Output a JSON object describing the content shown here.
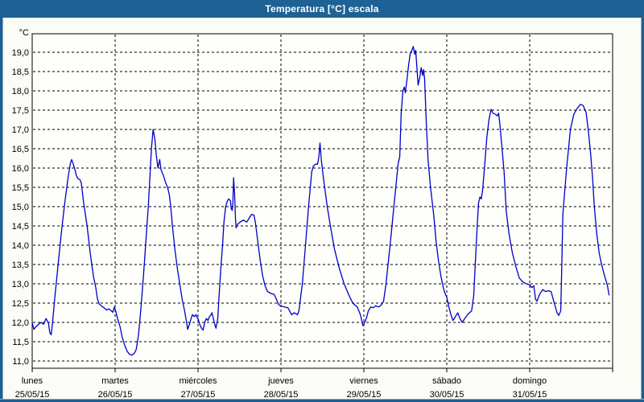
{
  "window": {
    "title": "Temperatura [°C] escala"
  },
  "colors": {
    "titlebar_bg": "#1E6295",
    "titlebar_text": "#FFFFFF",
    "window_border": "#1E5E92",
    "content_bg": "#FBFCF5",
    "plot_bg": "#FEFEFA",
    "line": "#0000C8",
    "grid": "#000000",
    "text": "#000000"
  },
  "chart_data": {
    "type": "line",
    "title": "Temperatura [°C] escala",
    "ylabel": "°C",
    "ylim": [
      10.8,
      19.5
    ],
    "grid": "dashed",
    "legend": "none",
    "y_ticks": [
      19.0,
      18.5,
      18.0,
      17.5,
      17.0,
      16.5,
      16.0,
      15.5,
      15.0,
      14.5,
      14.0,
      13.5,
      13.0,
      12.5,
      12.0,
      11.5,
      11.0
    ],
    "y_tick_labels": [
      "19,0",
      "18,5",
      "18,0",
      "17,5",
      "17,0",
      "16,5",
      "16,0",
      "15,5",
      "15,0",
      "14,5",
      "14,0",
      "13,5",
      "13,0",
      "12,5",
      "12,0",
      "11,5",
      "11,0"
    ],
    "categories": [
      {
        "name": "lunes",
        "date": "25/05/15"
      },
      {
        "name": "martes",
        "date": "26/05/15"
      },
      {
        "name": "miércoles",
        "date": "27/05/15"
      },
      {
        "name": "jueves",
        "date": "28/05/15"
      },
      {
        "name": "viernes",
        "date": "29/05/15"
      },
      {
        "name": "sábado",
        "date": "30/05/15"
      },
      {
        "name": "domingo",
        "date": "31/05/15"
      }
    ],
    "x_unit": "hours_from_start",
    "x_range_hours": [
      0,
      168
    ],
    "series": [
      {
        "name": "Temperatura [°C]",
        "color": "#0000C8",
        "points": [
          [
            0,
            12.0
          ],
          [
            0.5,
            11.82
          ],
          [
            1.2,
            11.9
          ],
          [
            1.8,
            11.95
          ],
          [
            2.6,
            12.0
          ],
          [
            3.3,
            11.95
          ],
          [
            4,
            12.1
          ],
          [
            4.7,
            11.98
          ],
          [
            5.1,
            11.73
          ],
          [
            5.5,
            11.68
          ],
          [
            5.9,
            12.0
          ],
          [
            6.5,
            12.6
          ],
          [
            7.5,
            13.5
          ],
          [
            8.4,
            14.3
          ],
          [
            9.3,
            15.0
          ],
          [
            10.3,
            15.7
          ],
          [
            11,
            16.1
          ],
          [
            11.4,
            16.22
          ],
          [
            11.9,
            16.1
          ],
          [
            12.4,
            15.95
          ],
          [
            12.8,
            15.8
          ],
          [
            13.3,
            15.72
          ],
          [
            13.8,
            15.7
          ],
          [
            14.2,
            15.62
          ],
          [
            14.9,
            15.1
          ],
          [
            15.9,
            14.5
          ],
          [
            16.8,
            13.8
          ],
          [
            17.7,
            13.2
          ],
          [
            18.4,
            12.9
          ],
          [
            18.9,
            12.6
          ],
          [
            19.4,
            12.48
          ],
          [
            20.1,
            12.42
          ],
          [
            20.8,
            12.38
          ],
          [
            21.5,
            12.32
          ],
          [
            22.2,
            12.35
          ],
          [
            22.9,
            12.3
          ],
          [
            23.3,
            12.26
          ],
          [
            23.8,
            12.4
          ],
          [
            24,
            12.35
          ],
          [
            24.7,
            12.1
          ],
          [
            25.4,
            11.9
          ],
          [
            26.1,
            11.6
          ],
          [
            26.8,
            11.4
          ],
          [
            27.5,
            11.25
          ],
          [
            28.2,
            11.17
          ],
          [
            28.9,
            11.15
          ],
          [
            29.6,
            11.2
          ],
          [
            30.1,
            11.3
          ],
          [
            30.8,
            11.7
          ],
          [
            31.5,
            12.4
          ],
          [
            32.2,
            13.2
          ],
          [
            32.9,
            14.1
          ],
          [
            33.6,
            15.0
          ],
          [
            34.1,
            15.8
          ],
          [
            34.5,
            16.5
          ],
          [
            35,
            17.0
          ],
          [
            35.5,
            16.75
          ],
          [
            35.9,
            16.35
          ],
          [
            36.4,
            16.0
          ],
          [
            36.9,
            16.22
          ],
          [
            37.3,
            15.95
          ],
          [
            38,
            15.8
          ],
          [
            38.7,
            15.6
          ],
          [
            39.2,
            15.5
          ],
          [
            39.7,
            15.3
          ],
          [
            40.1,
            15.0
          ],
          [
            40.6,
            14.5
          ],
          [
            41.3,
            13.9
          ],
          [
            42,
            13.4
          ],
          [
            42.7,
            13.0
          ],
          [
            43.4,
            12.6
          ],
          [
            44.1,
            12.3
          ],
          [
            44.6,
            12.05
          ],
          [
            45,
            11.82
          ],
          [
            45.5,
            11.95
          ],
          [
            46,
            12.1
          ],
          [
            46.4,
            12.2
          ],
          [
            46.9,
            12.15
          ],
          [
            47.4,
            12.2
          ],
          [
            47.8,
            12.12
          ],
          [
            48,
            12.1
          ],
          [
            48.5,
            11.95
          ],
          [
            49,
            11.85
          ],
          [
            49.5,
            11.8
          ],
          [
            49.9,
            12.0
          ],
          [
            50.4,
            12.1
          ],
          [
            50.9,
            12.05
          ],
          [
            51.3,
            12.15
          ],
          [
            51.8,
            12.2
          ],
          [
            52,
            12.25
          ],
          [
            52.3,
            12.15
          ],
          [
            52.7,
            12.0
          ],
          [
            53,
            11.9
          ],
          [
            53.2,
            11.85
          ],
          [
            53.7,
            12.1
          ],
          [
            54.1,
            12.7
          ],
          [
            54.6,
            13.4
          ],
          [
            55.1,
            14.0
          ],
          [
            55.5,
            14.6
          ],
          [
            56,
            15.0
          ],
          [
            56.5,
            15.15
          ],
          [
            56.9,
            15.2
          ],
          [
            57.4,
            15.15
          ],
          [
            57.6,
            14.95
          ],
          [
            57.9,
            14.9
          ],
          [
            58.1,
            15.1
          ],
          [
            58.3,
            15.75
          ],
          [
            58.6,
            15.3
          ],
          [
            58.8,
            14.75
          ],
          [
            59,
            14.45
          ],
          [
            59.5,
            14.55
          ],
          [
            60.2,
            14.6
          ],
          [
            61.1,
            14.65
          ],
          [
            62.1,
            14.6
          ],
          [
            62.8,
            14.7
          ],
          [
            63.5,
            14.8
          ],
          [
            64.2,
            14.78
          ],
          [
            64.6,
            14.6
          ],
          [
            65.3,
            14.1
          ],
          [
            66,
            13.6
          ],
          [
            66.7,
            13.2
          ],
          [
            67.4,
            12.95
          ],
          [
            68.1,
            12.8
          ],
          [
            69.1,
            12.75
          ],
          [
            70,
            12.73
          ],
          [
            70.7,
            12.6
          ],
          [
            71.2,
            12.48
          ],
          [
            71.6,
            12.44
          ],
          [
            72.1,
            12.42
          ],
          [
            73,
            12.4
          ],
          [
            74,
            12.38
          ],
          [
            75.1,
            12.2
          ],
          [
            75.8,
            12.25
          ],
          [
            76.8,
            12.2
          ],
          [
            77.2,
            12.3
          ],
          [
            78.2,
            13.0
          ],
          [
            79.1,
            14.0
          ],
          [
            80,
            15.0
          ],
          [
            80.9,
            15.9
          ],
          [
            81.4,
            16.05
          ],
          [
            82,
            16.1
          ],
          [
            82.6,
            16.1
          ],
          [
            83,
            16.3
          ],
          [
            83.3,
            16.65
          ],
          [
            83.7,
            16.2
          ],
          [
            84.2,
            15.8
          ],
          [
            85.4,
            15.0
          ],
          [
            86.3,
            14.5
          ],
          [
            87.5,
            13.9
          ],
          [
            88.9,
            13.4
          ],
          [
            90.3,
            13.0
          ],
          [
            91.7,
            12.7
          ],
          [
            92.8,
            12.5
          ],
          [
            93.4,
            12.45
          ],
          [
            94.1,
            12.4
          ],
          [
            95,
            12.2
          ],
          [
            95.5,
            12.0
          ],
          [
            95.7,
            11.92
          ],
          [
            96,
            11.95
          ],
          [
            96.7,
            12.1
          ],
          [
            97.3,
            12.3
          ],
          [
            98,
            12.4
          ],
          [
            98.7,
            12.38
          ],
          [
            99.4,
            12.43
          ],
          [
            100.3,
            12.4
          ],
          [
            101,
            12.45
          ],
          [
            101.7,
            12.55
          ],
          [
            102.4,
            13.0
          ],
          [
            103.6,
            14.0
          ],
          [
            104.7,
            15.0
          ],
          [
            105.9,
            16.1
          ],
          [
            106.4,
            16.3
          ],
          [
            106.8,
            17.4
          ],
          [
            107.3,
            18.0
          ],
          [
            107.7,
            18.1
          ],
          [
            108,
            17.95
          ],
          [
            108.5,
            18.3
          ],
          [
            109,
            18.7
          ],
          [
            109.4,
            18.95
          ],
          [
            109.9,
            19.05
          ],
          [
            110.3,
            19.15
          ],
          [
            110.7,
            18.95
          ],
          [
            111,
            19.05
          ],
          [
            111.7,
            18.15
          ],
          [
            112.2,
            18.35
          ],
          [
            112.6,
            18.6
          ],
          [
            113,
            18.4
          ],
          [
            113.3,
            18.55
          ],
          [
            113.6,
            18.3
          ],
          [
            114,
            17.3
          ],
          [
            114.6,
            16.2
          ],
          [
            115.3,
            15.5
          ],
          [
            116.2,
            14.8
          ],
          [
            116.9,
            14.1
          ],
          [
            117.6,
            13.6
          ],
          [
            118.3,
            13.2
          ],
          [
            119,
            12.9
          ],
          [
            119.5,
            12.75
          ],
          [
            120,
            12.65
          ],
          [
            120.6,
            12.4
          ],
          [
            121.2,
            12.2
          ],
          [
            121.8,
            12.05
          ],
          [
            122.5,
            12.15
          ],
          [
            123.2,
            12.25
          ],
          [
            123.8,
            12.1
          ],
          [
            124.5,
            12.0
          ],
          [
            125.2,
            12.1
          ],
          [
            126,
            12.2
          ],
          [
            126.6,
            12.25
          ],
          [
            127.2,
            12.3
          ],
          [
            127.8,
            12.7
          ],
          [
            128.3,
            13.6
          ],
          [
            128.8,
            14.5
          ],
          [
            129.2,
            15.1
          ],
          [
            129.6,
            15.25
          ],
          [
            130,
            15.2
          ],
          [
            130.4,
            15.45
          ],
          [
            131,
            16.1
          ],
          [
            131.6,
            16.8
          ],
          [
            132.2,
            17.25
          ],
          [
            132.8,
            17.52
          ],
          [
            133.4,
            17.42
          ],
          [
            134,
            17.4
          ],
          [
            134.6,
            17.35
          ],
          [
            135,
            17.42
          ],
          [
            135.4,
            17.1
          ],
          [
            136,
            16.5
          ],
          [
            136.6,
            15.9
          ],
          [
            137.2,
            14.9
          ],
          [
            138,
            14.3
          ],
          [
            139,
            13.8
          ],
          [
            140,
            13.45
          ],
          [
            141,
            13.15
          ],
          [
            142,
            13.05
          ],
          [
            143,
            13.0
          ],
          [
            144,
            12.98
          ],
          [
            144.6,
            12.9
          ],
          [
            145.2,
            12.95
          ],
          [
            145.7,
            12.6
          ],
          [
            146.1,
            12.55
          ],
          [
            147,
            12.75
          ],
          [
            147.8,
            12.85
          ],
          [
            148.6,
            12.8
          ],
          [
            149.4,
            12.82
          ],
          [
            150.2,
            12.8
          ],
          [
            150.8,
            12.6
          ],
          [
            151.3,
            12.45
          ],
          [
            151.9,
            12.25
          ],
          [
            152.4,
            12.18
          ],
          [
            153,
            12.3
          ],
          [
            153.3,
            13.5
          ],
          [
            153.6,
            14.8
          ],
          [
            154.7,
            16.0
          ],
          [
            155.8,
            17.0
          ],
          [
            156.8,
            17.4
          ],
          [
            157.8,
            17.55
          ],
          [
            158.7,
            17.65
          ],
          [
            159.5,
            17.62
          ],
          [
            160,
            17.5
          ],
          [
            160.3,
            17.45
          ],
          [
            161,
            16.95
          ],
          [
            161.7,
            16.3
          ],
          [
            162.2,
            15.75
          ],
          [
            162.6,
            15.15
          ],
          [
            162.9,
            14.8
          ],
          [
            163.4,
            14.3
          ],
          [
            164.1,
            13.8
          ],
          [
            164.8,
            13.5
          ],
          [
            165.7,
            13.2
          ],
          [
            166.2,
            13.05
          ],
          [
            166.5,
            12.95
          ],
          [
            167,
            12.7
          ]
        ]
      }
    ]
  }
}
